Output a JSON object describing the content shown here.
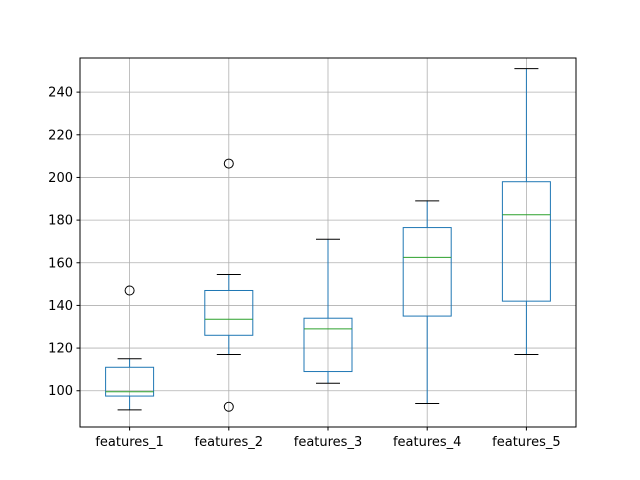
{
  "chart_data": {
    "type": "box",
    "title": "",
    "xlabel": "",
    "ylabel": "",
    "categories": [
      "features_1",
      "features_2",
      "features_3",
      "features_4",
      "features_5"
    ],
    "ylim": [
      83,
      256
    ],
    "yticks": [
      100,
      120,
      140,
      160,
      180,
      200,
      220,
      240
    ],
    "grid": true,
    "boxes": [
      {
        "name": "features_1",
        "whisker_low": 91,
        "q1": 97.5,
        "median": 99.5,
        "q3": 111,
        "whisker_high": 115,
        "fliers": [
          147
        ]
      },
      {
        "name": "features_2",
        "whisker_low": 117,
        "q1": 126,
        "median": 133.5,
        "q3": 147,
        "whisker_high": 154.5,
        "fliers": [
          206.5,
          92.5
        ]
      },
      {
        "name": "features_3",
        "whisker_low": 103.5,
        "q1": 109,
        "median": 129,
        "q3": 134,
        "whisker_high": 171,
        "fliers": []
      },
      {
        "name": "features_4",
        "whisker_low": 94,
        "q1": 135,
        "median": 162.5,
        "q3": 176.5,
        "whisker_high": 189,
        "fliers": []
      },
      {
        "name": "features_5",
        "whisker_low": 117,
        "q1": 142,
        "median": 182.5,
        "q3": 198,
        "whisker_high": 251,
        "fliers": []
      }
    ],
    "colors": {
      "box": "#1f77b4",
      "median": "#2ca02c",
      "cap": "#000000",
      "flier": "#000000",
      "grid": "#b0b0b0"
    }
  }
}
